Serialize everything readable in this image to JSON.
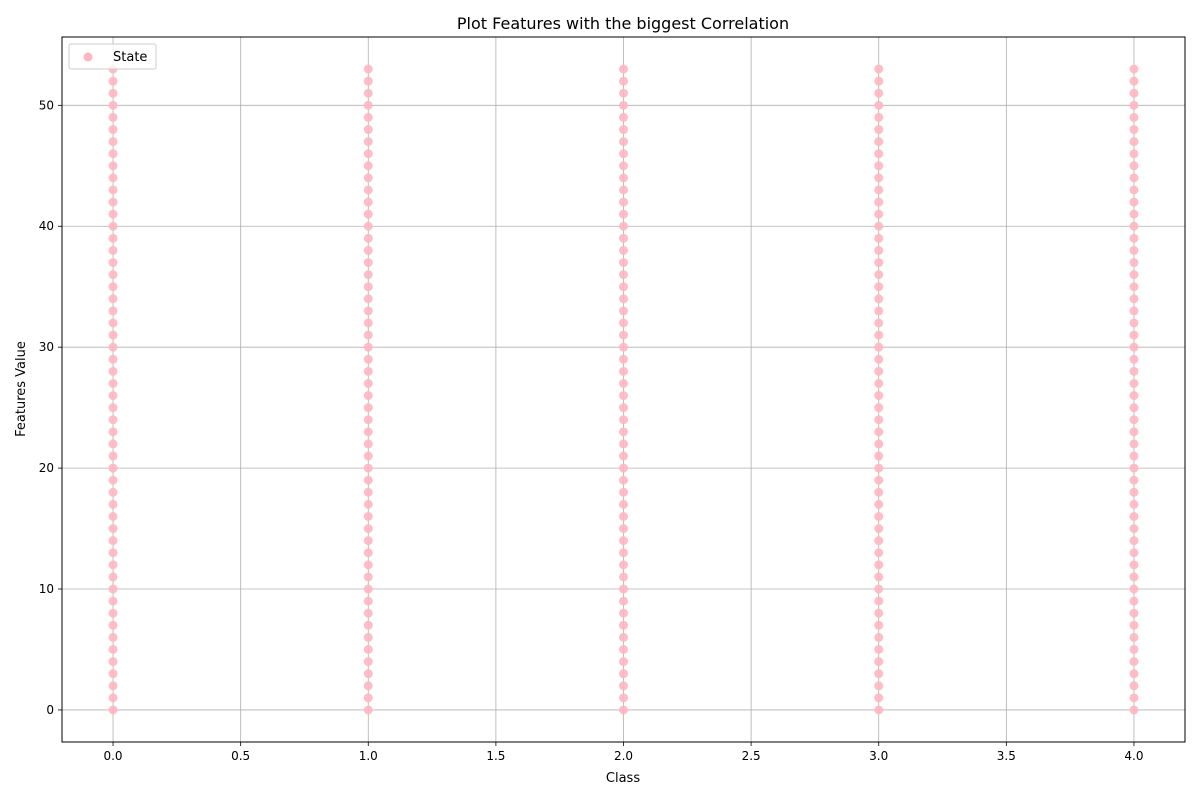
{
  "chart_data": {
    "type": "scatter",
    "title": "Plot Features with the biggest Correlation",
    "xlabel": "Class",
    "ylabel": "Features Value",
    "xlim": [
      -0.2,
      4.2
    ],
    "ylim": [
      -2.65,
      55.65
    ],
    "xticks": [
      "0.0",
      "0.5",
      "1.0",
      "1.5",
      "2.0",
      "2.5",
      "3.0",
      "3.5",
      "4.0"
    ],
    "yticks": [
      "0",
      "10",
      "20",
      "30",
      "40",
      "50"
    ],
    "grid": true,
    "legend": {
      "placement": "top-left",
      "entries": [
        "State"
      ]
    },
    "series": [
      {
        "name": "State",
        "color": "#ffb6c1",
        "x_classes": [
          0,
          1,
          2,
          3,
          4
        ],
        "y_range": [
          0,
          53
        ],
        "y_step": 1
      }
    ]
  }
}
